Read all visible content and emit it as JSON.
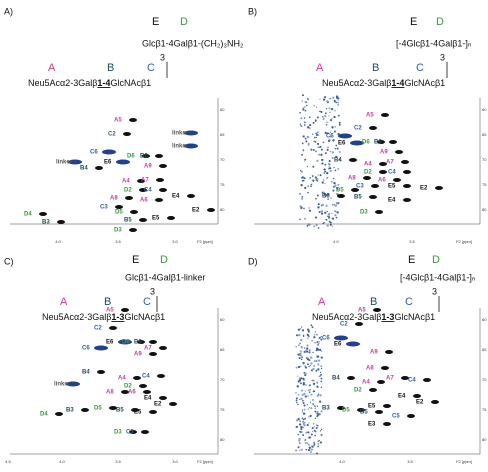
{
  "panels": [
    {
      "label": "A)",
      "letters_top": [
        "E",
        "D"
      ],
      "branch": "Glcβ1-4Galβ1-(CH₂)₃NH₂",
      "branch_position": "3",
      "letters_bottom": [
        "A",
        "B",
        "C"
      ],
      "root_pre": "Neu5Acα2-3Galβ",
      "root_link": "1-4",
      "root_post": "GlcNAcβ1",
      "peaks": [
        "A5",
        "C2",
        "linker",
        "linker",
        "C6",
        "D6",
        "B6",
        "E6",
        "A9",
        "linker",
        "B4",
        "A4",
        "A7",
        "D2",
        "C4",
        "A8",
        "C3",
        "A6",
        "E4",
        "D5",
        "B5",
        "E5",
        "E2",
        "D4",
        "B3",
        "D3"
      ],
      "x_ticks": [
        "4.0",
        "3.5",
        "3.0",
        "F2 [ppm]"
      ],
      "y_ticks": [
        "60",
        "65",
        "70",
        "75",
        "80"
      ]
    },
    {
      "label": "B)",
      "letters_top": [
        "E",
        "D"
      ],
      "branch": "[-4Glcβ1-4Galβ1-]ₙ",
      "branch_position": "3",
      "letters_bottom": [
        "A",
        "B",
        "C"
      ],
      "root_pre": "Neu5Acα2-3Galβ",
      "root_link": "1-4",
      "root_post": "GlcNAcβ1",
      "peaks": [
        "A5",
        "C2",
        "C6",
        "E6",
        "D6",
        "B6",
        "A9",
        "B4",
        "A4",
        "A7",
        "C4",
        "D2",
        "A8",
        "D5",
        "C3",
        "E5",
        "B3",
        "A6",
        "E2",
        "B5",
        "E4",
        "D3"
      ],
      "x_ticks": [
        "4.0",
        "3.5",
        "F2 [ppm]"
      ],
      "y_ticks": [
        "60",
        "65",
        "70",
        "75",
        "80"
      ]
    },
    {
      "label": "C)",
      "letters_top": [
        "E",
        "D"
      ],
      "branch": "Glcβ1-4Galβ1-linker",
      "branch_position": "3",
      "letters_bottom": [
        "A",
        "B",
        "C"
      ],
      "root_pre": "Neu5Acα2-3Galβ",
      "root_link": "1-3",
      "root_post": "GlcNAcβ1",
      "peaks": [
        "A5",
        "C2",
        "E6",
        "D6",
        "B6",
        "C6",
        "A7",
        "A9",
        "linker",
        "B4",
        "A4",
        "C4",
        "D2",
        "A8",
        "A6",
        "E4",
        "E2",
        "B3",
        "D5",
        "B5",
        "E5",
        "D4",
        "D3",
        "C3"
      ],
      "x_ticks": [
        "4.5",
        "4.0",
        "3.5",
        "3.0",
        "F2 [ppm]"
      ],
      "y_ticks": [
        "60",
        "65",
        "70",
        "75",
        "80"
      ]
    },
    {
      "label": "D)",
      "letters_top": [
        "E",
        "D"
      ],
      "branch": "[-4Glcβ1-4Galβ1-]ₙ",
      "branch_position": "3",
      "letters_bottom": [
        "A",
        "B",
        "C"
      ],
      "root_pre": "Neu5Acα2-3Galβ",
      "root_link": "1-3",
      "root_post": "GlcNAcβ1",
      "peaks": [
        "A5",
        "C2",
        "C6",
        "E6",
        "A9",
        "B4",
        "A8",
        "A4",
        "A7",
        "D2",
        "C4",
        "E4",
        "E2",
        "B3",
        "D5",
        "B5",
        "C5",
        "E5",
        "E3"
      ],
      "x_ticks": [
        "4.0",
        "3.5",
        "F2 [ppm]"
      ],
      "y_ticks": [
        "60",
        "65",
        "70",
        "75",
        "80"
      ]
    }
  ]
}
